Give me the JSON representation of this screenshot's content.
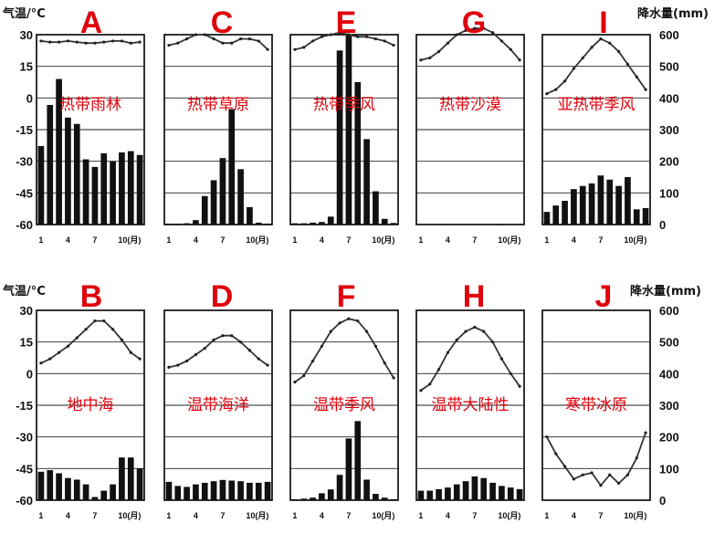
{
  "chart_data": {
    "type": "climate-charts",
    "left_axis": {
      "title": "气温/°C",
      "ticks": [
        "30",
        "15",
        "0",
        "-15",
        "-30",
        "-45",
        "-60"
      ],
      "ylim": [
        -60,
        30
      ]
    },
    "right_axis": {
      "title": "降水量(mm)",
      "ticks": [
        "600",
        "500",
        "400",
        "300",
        "200",
        "100",
        "0"
      ],
      "ylim": [
        0,
        600
      ]
    },
    "month_ticks": [
      "1",
      "4",
      "7",
      "10(月)"
    ],
    "panels": [
      {
        "letter": "A",
        "label": "热带雨林",
        "temperature": [
          27,
          26.5,
          26.5,
          27,
          26.5,
          26,
          26,
          26.5,
          27,
          27,
          26,
          26.5
        ],
        "precipitation": [
          248,
          378,
          460,
          338,
          318,
          206,
          182,
          225,
          200,
          228,
          232,
          220
        ]
      },
      {
        "letter": "C",
        "label": "热带草原",
        "temperature": [
          25,
          26,
          28,
          30,
          30,
          28,
          26,
          26,
          28,
          28,
          27,
          23
        ],
        "precipitation": [
          3,
          3,
          4,
          14,
          90,
          140,
          210,
          365,
          175,
          55,
          6,
          3
        ]
      },
      {
        "letter": "E",
        "label": "热带季风",
        "temperature": [
          23,
          24,
          27,
          29,
          30,
          31,
          30,
          29,
          29,
          28,
          27,
          25
        ],
        "precipitation": [
          4,
          4,
          6,
          8,
          25,
          550,
          600,
          450,
          270,
          105,
          18,
          5
        ]
      },
      {
        "letter": "G",
        "label": "热带沙漠",
        "temperature": [
          18,
          19,
          22,
          26,
          30,
          32,
          33,
          33,
          31,
          27,
          23,
          18
        ],
        "precipitation": [
          0,
          0,
          0,
          2,
          0,
          0,
          0,
          0,
          0,
          2,
          0,
          0
        ]
      },
      {
        "letter": "I",
        "label": "亚热带季风",
        "temperature": [
          2,
          4,
          8,
          14,
          19,
          24,
          28,
          26,
          22,
          16,
          10,
          4
        ],
        "precipitation": [
          40,
          60,
          75,
          112,
          122,
          130,
          155,
          142,
          122,
          150,
          48,
          52
        ]
      },
      {
        "letter": "B",
        "label": "地中海",
        "temperature": [
          5,
          7,
          10,
          13,
          17,
          21,
          25,
          25,
          21,
          16,
          10,
          7
        ],
        "precipitation": [
          90,
          95,
          85,
          70,
          65,
          50,
          10,
          30,
          50,
          135,
          135,
          100
        ]
      },
      {
        "letter": "D",
        "label": "温带海洋",
        "temperature": [
          3,
          4,
          6,
          9,
          12,
          16,
          18,
          18,
          15,
          11,
          7,
          4
        ],
        "precipitation": [
          58,
          45,
          42,
          50,
          55,
          60,
          64,
          62,
          60,
          55,
          55,
          58
        ]
      },
      {
        "letter": "F",
        "label": "温带季风",
        "temperature": [
          -4,
          -1,
          6,
          13,
          20,
          24,
          26,
          25,
          20,
          13,
          5,
          -2
        ],
        "precipitation": [
          3,
          5,
          8,
          22,
          34,
          80,
          195,
          250,
          65,
          20,
          8,
          3
        ]
      },
      {
        "letter": "H",
        "label": "温带大陆性",
        "temperature": [
          -8,
          -5,
          2,
          10,
          16,
          20,
          22,
          20,
          15,
          7,
          0,
          -6
        ],
        "precipitation": [
          30,
          30,
          35,
          40,
          50,
          60,
          75,
          70,
          55,
          45,
          40,
          35
        ]
      },
      {
        "letter": "J",
        "label": "寒带冰原",
        "temperature": [
          -30,
          -38,
          -44,
          -50,
          -48,
          -47,
          -53,
          -48,
          -52,
          -48,
          -40,
          -28
        ],
        "precipitation": [
          0,
          0,
          0,
          0,
          0,
          0,
          0,
          0,
          0,
          0,
          0,
          0
        ]
      }
    ]
  }
}
